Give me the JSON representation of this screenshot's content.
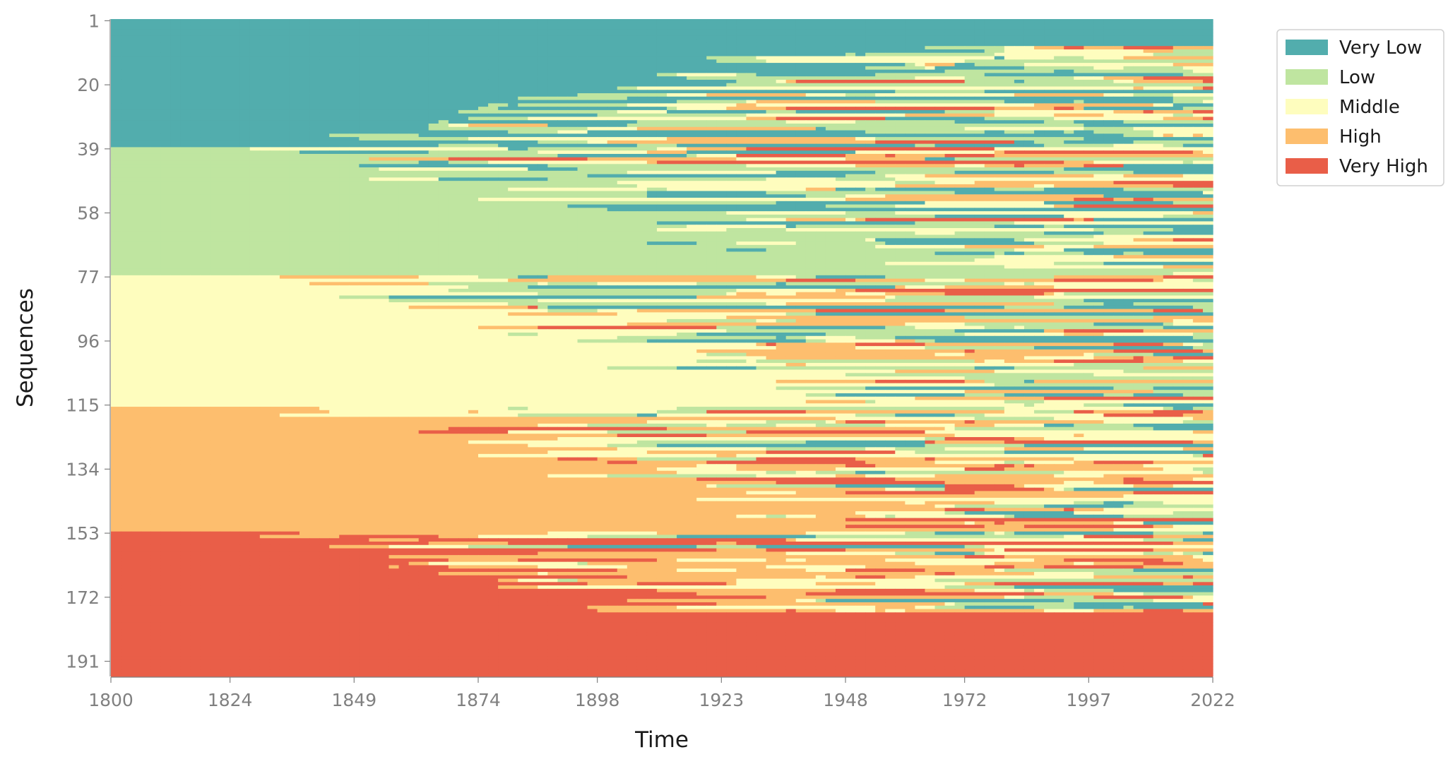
{
  "chart_data": {
    "type": "heatmap",
    "subtype": "sequence index plot",
    "title": "",
    "xlabel": "Time",
    "ylabel": "Sequences",
    "x_range": [
      1800,
      2022
    ],
    "y_range": [
      1,
      195
    ],
    "xticks": [
      "1800",
      "1824",
      "1849",
      "1874",
      "1898",
      "1923",
      "1948",
      "1972",
      "1997",
      "2022"
    ],
    "yticks": [
      "1",
      "20",
      "39",
      "58",
      "77",
      "96",
      "115",
      "134",
      "153",
      "172",
      "191"
    ],
    "states": [
      {
        "name": "Very Low",
        "color": "#52ADAD"
      },
      {
        "name": "Low",
        "color": "#BFE5A0"
      },
      {
        "name": "Middle",
        "color": "#FEFDBE"
      },
      {
        "name": "High",
        "color": "#FDBE6E"
      },
      {
        "name": "Very High",
        "color": "#E95E48"
      }
    ],
    "legend_position": "outside upper-right",
    "grid": false,
    "initial_state_boundaries": [
      {
        "state": "Very Low",
        "rows": [
          1,
          38
        ]
      },
      {
        "state": "Low",
        "rows": [
          39,
          76
        ]
      },
      {
        "state": "Middle",
        "rows": [
          77,
          115
        ]
      },
      {
        "state": "High",
        "rows": [
          116,
          152
        ]
      },
      {
        "state": "Very High",
        "rows": [
          153,
          195
        ]
      }
    ],
    "final_state_boundaries_2022": [
      {
        "state": "Very Low",
        "rows": [
          1,
          8
        ]
      },
      {
        "state": "mixed",
        "rows": [
          9,
          176
        ]
      },
      {
        "state": "Very High",
        "rows": [
          177,
          195
        ]
      }
    ]
  }
}
